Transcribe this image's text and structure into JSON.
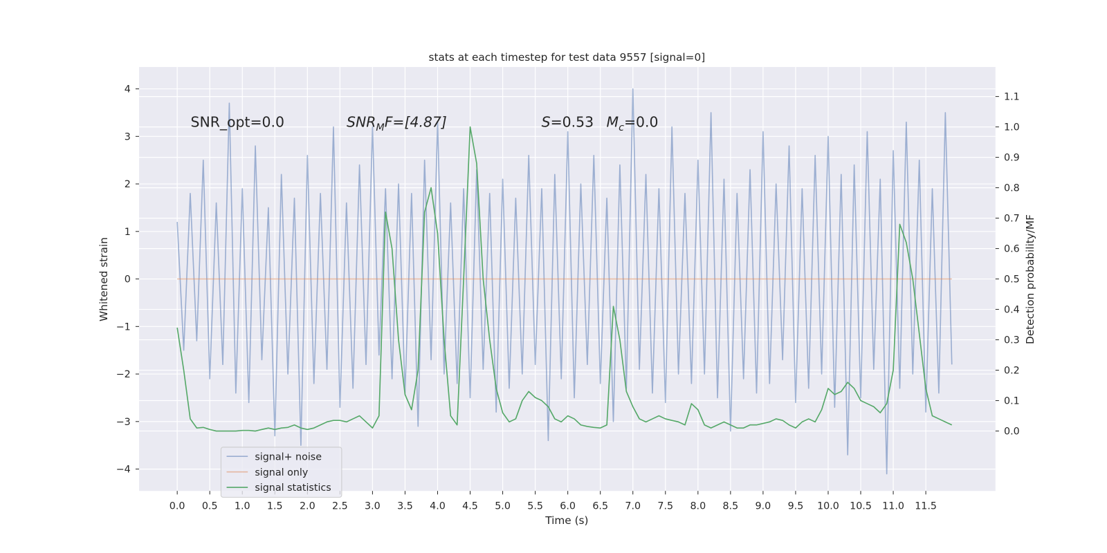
{
  "chart_data": {
    "type": "line",
    "title": "stats at each timestep for test data 9557 [signal=0]",
    "xlabel": "Time (s)",
    "ylabel": "Whitened strain",
    "y2label": "Detection probability/MF",
    "annotations": [
      [
        "SNR_opt=0.0"
      ],
      [
        "SNR",
        "M",
        "F=[4.87]"
      ],
      [
        "S",
        "=0.53"
      ],
      [
        "M",
        "c",
        "=0.0"
      ]
    ],
    "xlim": [
      -0.586,
      12.57
    ],
    "ylim": [
      -4.46,
      4.46
    ],
    "y2lim": [
      -0.197,
      1.197
    ],
    "xticks": [
      {
        "value": 0,
        "label": "0.0"
      },
      {
        "value": 0.5,
        "label": "0.5"
      },
      {
        "value": 1,
        "label": "1.0"
      },
      {
        "value": 1.5,
        "label": "1.5"
      },
      {
        "value": 2,
        "label": "2.0"
      },
      {
        "value": 2.5,
        "label": "2.5"
      },
      {
        "value": 3,
        "label": "3.0"
      },
      {
        "value": 3.5,
        "label": "3.5"
      },
      {
        "value": 4,
        "label": "4.0"
      },
      {
        "value": 4.5,
        "label": "4.5"
      },
      {
        "value": 5,
        "label": "5.0"
      },
      {
        "value": 5.5,
        "label": "5.5"
      },
      {
        "value": 6,
        "label": "6.0"
      },
      {
        "value": 6.5,
        "label": "6.5"
      },
      {
        "value": 7,
        "label": "7.0"
      },
      {
        "value": 7.5,
        "label": "7.5"
      },
      {
        "value": 8,
        "label": "8.0"
      },
      {
        "value": 8.5,
        "label": "8.5"
      },
      {
        "value": 9,
        "label": "9.0"
      },
      {
        "value": 9.5,
        "label": "9.5"
      },
      {
        "value": 10,
        "label": "10.0"
      },
      {
        "value": 10.5,
        "label": "10.5"
      },
      {
        "value": 11,
        "label": "11.0"
      },
      {
        "value": 11.5,
        "label": "11.5"
      }
    ],
    "yticks": [
      {
        "value": -4,
        "label": "−4"
      },
      {
        "value": -3,
        "label": "−3"
      },
      {
        "value": -2,
        "label": "−2"
      },
      {
        "value": -1,
        "label": "−1"
      },
      0,
      1,
      2,
      3,
      4
    ],
    "y2ticks": [
      {
        "value": 0,
        "label": "0.0"
      },
      {
        "value": 0.1,
        "label": "0.1"
      },
      {
        "value": 0.2,
        "label": "0.2"
      },
      {
        "value": 0.3,
        "label": "0.3"
      },
      {
        "value": 0.4,
        "label": "0.4"
      },
      {
        "value": 0.5,
        "label": "0.5"
      },
      {
        "value": 0.6,
        "label": "0.6"
      },
      {
        "value": 0.7,
        "label": "0.7"
      },
      {
        "value": 0.8,
        "label": "0.8"
      },
      {
        "value": 0.9,
        "label": "0.9"
      },
      {
        "value": 1,
        "label": "1.0"
      },
      {
        "value": 1.1,
        "label": "1.1"
      }
    ],
    "grid": true,
    "legend": "lower left",
    "x": [
      0,
      0.1,
      0.2,
      0.3,
      0.4,
      0.5,
      0.6,
      0.7,
      0.8,
      0.9,
      1,
      1.1,
      1.2,
      1.3,
      1.4,
      1.5,
      1.6,
      1.7,
      1.8,
      1.9,
      2,
      2.1,
      2.2,
      2.3,
      2.4,
      2.5,
      2.6,
      2.7,
      2.8,
      2.9,
      3,
      3.1,
      3.2,
      3.3,
      3.4,
      3.5,
      3.6,
      3.7,
      3.8,
      3.9,
      4,
      4.1,
      4.2,
      4.3,
      4.4,
      4.5,
      4.6,
      4.7,
      4.8,
      4.9,
      5,
      5.1,
      5.2,
      5.3,
      5.4,
      5.5,
      5.6,
      5.7,
      5.8,
      5.9,
      6,
      6.1,
      6.2,
      6.3,
      6.4,
      6.5,
      6.6,
      6.7,
      6.8,
      6.9,
      7,
      7.1,
      7.2,
      7.3,
      7.4,
      7.5,
      7.6,
      7.7,
      7.8,
      7.9,
      8,
      8.1,
      8.2,
      8.3,
      8.4,
      8.5,
      8.6,
      8.7,
      8.8,
      8.9,
      9,
      9.1,
      9.2,
      9.3,
      9.4,
      9.5,
      9.6,
      9.7,
      9.8,
      9.9,
      10,
      10.1,
      10.2,
      10.3,
      10.4,
      10.5,
      10.6,
      10.7,
      10.8,
      10.9,
      11,
      11.1,
      11.2,
      11.3,
      11.4,
      11.5,
      11.6,
      11.7,
      11.8,
      11.9
    ],
    "series": [
      {
        "name": "signal+ noise",
        "color": "#4c72b0",
        "opacity": 0.5,
        "values": [
          1.2,
          -1.5,
          1.8,
          -1.3,
          2.5,
          -2.1,
          1.6,
          -1.8,
          3.7,
          -2.4,
          1.9,
          -2.6,
          2.8,
          -1.7,
          1.5,
          -3.3,
          2.2,
          -2.0,
          1.7,
          -3.5,
          2.6,
          -2.2,
          1.8,
          -1.9,
          3.2,
          -2.7,
          1.6,
          -2.3,
          2.4,
          -1.8,
          3.2,
          -1.6,
          1.9,
          -2.1,
          2.0,
          -2.4,
          1.8,
          -3.1,
          2.5,
          -1.7,
          3.3,
          -2.0,
          1.6,
          -2.2,
          1.9,
          -2.5,
          2.3,
          -1.9,
          1.8,
          -2.8,
          2.1,
          -2.3,
          1.7,
          -2.0,
          2.6,
          -1.8,
          1.9,
          -3.4,
          2.2,
          -2.1,
          3.1,
          -2.5,
          2.0,
          -1.8,
          2.6,
          -2.2,
          1.7,
          -3.0,
          2.4,
          -2.3,
          4.0,
          -1.9,
          2.2,
          -2.4,
          1.9,
          -2.6,
          3.2,
          -2.0,
          1.8,
          -2.2,
          2.5,
          -2.0,
          3.5,
          -2.5,
          2.1,
          -3.2,
          1.8,
          -2.1,
          2.3,
          -2.4,
          3.1,
          -2.2,
          2.0,
          -1.7,
          2.8,
          -2.6,
          1.9,
          -2.3,
          2.6,
          -2.0,
          3.0,
          -2.7,
          2.2,
          -3.7,
          2.4,
          -2.5,
          3.1,
          -1.9,
          2.1,
          -4.1,
          2.7,
          -2.3,
          3.3,
          -2.0,
          2.5,
          -2.8,
          1.9,
          -2.4,
          3.5,
          -1.8
        ]
      },
      {
        "name": "signal only",
        "color": "#dd8452",
        "opacity": 0.5,
        "values": [
          0,
          0,
          0,
          0,
          0,
          0,
          0,
          0,
          0,
          0,
          0,
          0,
          0,
          0,
          0,
          0,
          0,
          0,
          0,
          0,
          0,
          0,
          0,
          0,
          0,
          0,
          0,
          0,
          0,
          0,
          0,
          0,
          0,
          0,
          0,
          0,
          0,
          0,
          0,
          0,
          0,
          0,
          0,
          0,
          0,
          0,
          0,
          0,
          0,
          0,
          0,
          0,
          0,
          0,
          0,
          0,
          0,
          0,
          0,
          0,
          0,
          0,
          0,
          0,
          0,
          0,
          0,
          0,
          0,
          0,
          0,
          0,
          0,
          0,
          0,
          0,
          0,
          0,
          0,
          0,
          0,
          0,
          0,
          0,
          0,
          0,
          0,
          0,
          0,
          0,
          0,
          0,
          0,
          0,
          0,
          0,
          0,
          0,
          0,
          0,
          0,
          0,
          0,
          0,
          0,
          0,
          0,
          0,
          0,
          0,
          0,
          0,
          0,
          0,
          0,
          0,
          0,
          0,
          0,
          0
        ]
      },
      {
        "name": "signal statistics",
        "color": "#55a868",
        "opacity": 1,
        "axis": "y2",
        "values": [
          0.34,
          0.2,
          0.04,
          0.01,
          0.012,
          0.005,
          0,
          0,
          0,
          0,
          0.002,
          0.002,
          0,
          0.005,
          0.01,
          0.005,
          0.01,
          0.012,
          0.02,
          0.01,
          0.005,
          0.01,
          0.02,
          0.03,
          0.035,
          0.035,
          0.03,
          0.04,
          0.05,
          0.03,
          0.01,
          0.05,
          0.72,
          0.6,
          0.3,
          0.12,
          0.07,
          0.2,
          0.72,
          0.8,
          0.65,
          0.3,
          0.05,
          0.02,
          0.5,
          1.0,
          0.88,
          0.5,
          0.3,
          0.14,
          0.06,
          0.03,
          0.04,
          0.1,
          0.13,
          0.11,
          0.1,
          0.08,
          0.04,
          0.03,
          0.05,
          0.04,
          0.02,
          0.015,
          0.012,
          0.01,
          0.02,
          0.41,
          0.3,
          0.13,
          0.08,
          0.04,
          0.03,
          0.04,
          0.05,
          0.04,
          0.035,
          0.03,
          0.02,
          0.09,
          0.07,
          0.02,
          0.01,
          0.02,
          0.03,
          0.02,
          0.01,
          0.01,
          0.02,
          0.02,
          0.025,
          0.03,
          0.04,
          0.035,
          0.02,
          0.01,
          0.03,
          0.04,
          0.03,
          0.07,
          0.14,
          0.12,
          0.13,
          0.16,
          0.14,
          0.1,
          0.09,
          0.08,
          0.06,
          0.09,
          0.2,
          0.68,
          0.62,
          0.5,
          0.32,
          0.14,
          0.05,
          0.04,
          0.03,
          0.02
        ]
      }
    ]
  }
}
